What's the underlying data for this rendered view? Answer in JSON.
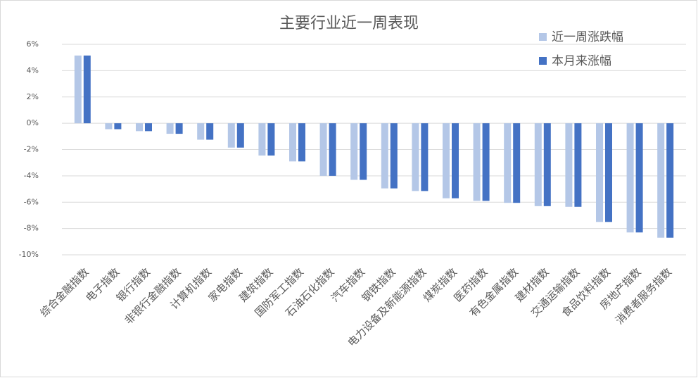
{
  "chart_data": {
    "type": "bar",
    "title": "主要行业近一周表现",
    "categories": [
      "综合金融指数",
      "电子指数",
      "银行指数",
      "非银行金融指数",
      "计算机指数",
      "家电指数",
      "建筑指数",
      "国防军工指数",
      "石油石化指数",
      "汽车指数",
      "钢铁指数",
      "电力设备及新能源指数",
      "煤炭指数",
      "医药指数",
      "有色金属指数",
      "建材指数",
      "交通运输指数",
      "食品饮料指数",
      "房地产指数",
      "消费者服务指数"
    ],
    "series": [
      {
        "name": "近一周涨跌幅",
        "color": "#b4c7e7",
        "values": [
          5.15,
          -0.45,
          -0.6,
          -0.8,
          -1.25,
          -1.85,
          -2.45,
          -2.9,
          -4.0,
          -4.3,
          -4.95,
          -5.15,
          -5.7,
          -5.9,
          -6.05,
          -6.3,
          -6.35,
          -7.5,
          -8.3,
          -8.7
        ]
      },
      {
        "name": "本月来涨幅",
        "color": "#4472c4",
        "values": [
          5.15,
          -0.45,
          -0.6,
          -0.8,
          -1.25,
          -1.85,
          -2.45,
          -2.9,
          -4.0,
          -4.3,
          -4.95,
          -5.15,
          -5.7,
          -5.9,
          -6.05,
          -6.3,
          -6.35,
          -7.5,
          -8.3,
          -8.7
        ]
      }
    ],
    "ylim": [
      -10,
      6
    ],
    "yticks": [
      {
        "value": -10,
        "label": "-10%"
      },
      {
        "value": -8,
        "label": "-8%"
      },
      {
        "value": -6,
        "label": "-6%"
      },
      {
        "value": -4,
        "label": "-4%"
      },
      {
        "value": -2,
        "label": "-2%"
      },
      {
        "value": 0,
        "label": "0%"
      },
      {
        "value": 2,
        "label": "2%"
      },
      {
        "value": 4,
        "label": "4%"
      },
      {
        "value": 6,
        "label": "6%"
      }
    ],
    "grid": true,
    "legend": "top-right"
  }
}
